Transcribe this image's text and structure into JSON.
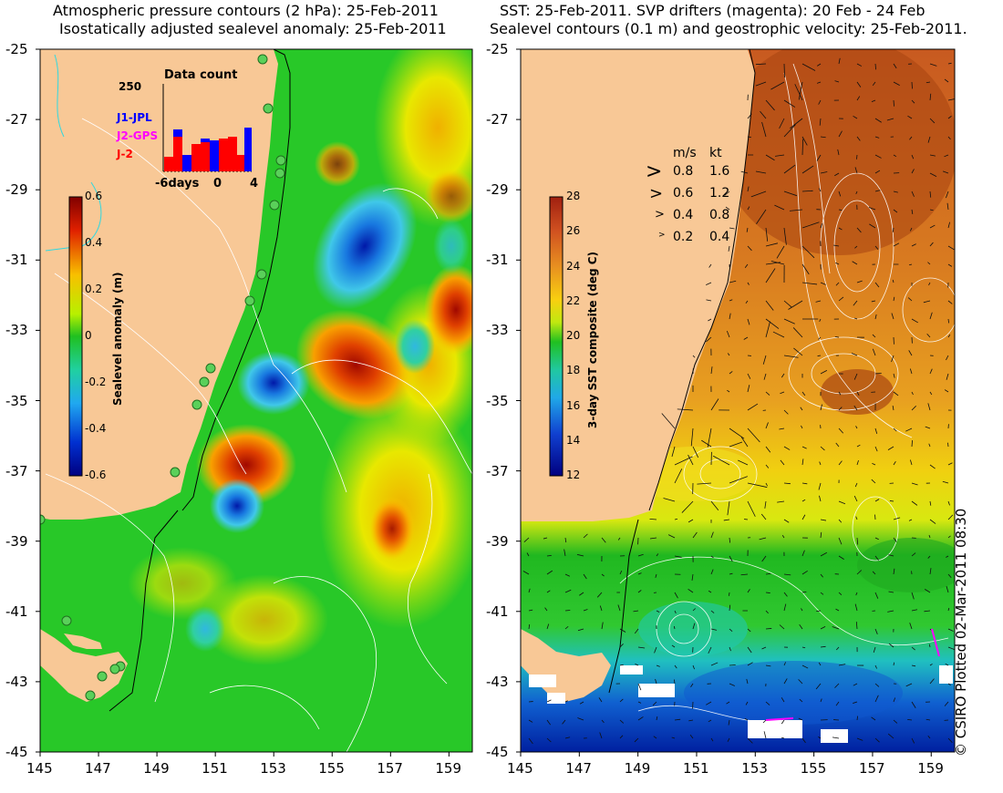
{
  "left_panel": {
    "title_line1": "Atmospheric pressure contours (2 hPa): 25-Feb-2011",
    "title_line2": "Isostatically adjusted sealevel anomaly: 25-Feb-2011",
    "colorbar": {
      "label": "Sealevel anomaly (m)",
      "ticks": [
        "0.6",
        "0.4",
        "0.2",
        "0",
        "-0.2",
        "-0.4",
        "-0.6"
      ]
    },
    "data_count": {
      "title": "Data count",
      "ymax_label": "250",
      "xticks": [
        "-6days",
        "0",
        "4"
      ],
      "legend": [
        {
          "label": "J1-JPL",
          "color": "#0000ff"
        },
        {
          "label": "J2-GPS",
          "color": "#ff00ff"
        },
        {
          "label": "J-2",
          "color": "#ff0000"
        }
      ]
    }
  },
  "right_panel": {
    "title_line1": "SST: 25-Feb-2011. SVP drifters (magenta): 20 Feb - 24 Feb",
    "title_line2": "Sealevel contours (0.1 m) and geostrophic velocity: 25-Feb-2011.",
    "colorbar": {
      "label": "3-day SST composite (deg C)",
      "ticks": [
        "28",
        "26",
        "24",
        "22",
        "20",
        "18",
        "16",
        "14",
        "12"
      ]
    },
    "velocity_legend": {
      "header_ms": "m/s",
      "header_kt": "kt",
      "rows": [
        {
          "ms": "0.8",
          "kt": "1.6"
        },
        {
          "ms": "0.6",
          "kt": "1.2"
        },
        {
          "ms": "0.4",
          "kt": "0.8"
        },
        {
          "ms": "0.2",
          "kt": "0.4"
        }
      ]
    }
  },
  "axes": {
    "y_ticks": [
      "-25",
      "-27",
      "-29",
      "-31",
      "-33",
      "-35",
      "-37",
      "-39",
      "-41",
      "-43",
      "-45"
    ],
    "x_ticks": [
      "145",
      "147",
      "149",
      "151",
      "153",
      "155",
      "157",
      "159"
    ]
  },
  "credit": "© CSIRO Plotted 02-Mar-2011 08:30",
  "colors": {
    "land": "#f8c896",
    "sla_low": "#0000a0",
    "sla_high": "#a01000",
    "warm_sst": "#b04818",
    "cool_sst": "#1040c0"
  }
}
